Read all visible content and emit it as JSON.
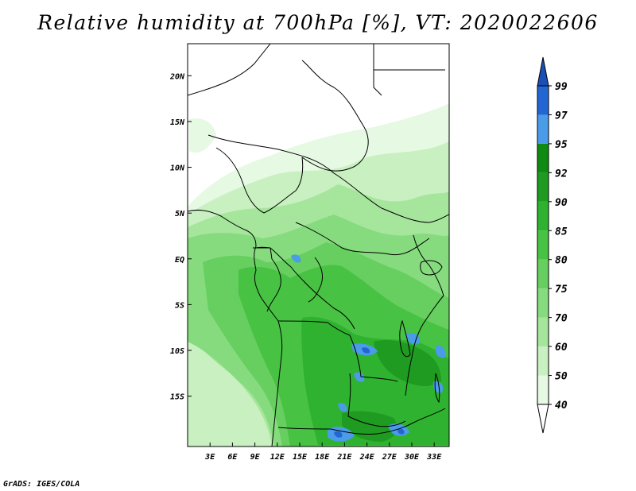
{
  "title": "Relative humidity at 700hPa [%], VT: 2020022606",
  "credit": "GrADS: IGES/COLA",
  "map": {
    "lat_range": [
      -20.5,
      23.5
    ],
    "lon_range": [
      0,
      35
    ],
    "lat_ticks": [
      {
        "value": 20,
        "label": "20N"
      },
      {
        "value": 15,
        "label": "15N"
      },
      {
        "value": 10,
        "label": "10N"
      },
      {
        "value": 5,
        "label": "5N"
      },
      {
        "value": 0,
        "label": "EQ"
      },
      {
        "value": -5,
        "label": "5S"
      },
      {
        "value": -10,
        "label": "10S"
      },
      {
        "value": -15,
        "label": "15S"
      }
    ],
    "lon_ticks": [
      {
        "value": 3,
        "label": "3E"
      },
      {
        "value": 6,
        "label": "6E"
      },
      {
        "value": 9,
        "label": "9E"
      },
      {
        "value": 12,
        "label": "12E"
      },
      {
        "value": 15,
        "label": "15E"
      },
      {
        "value": 18,
        "label": "18E"
      },
      {
        "value": 21,
        "label": "21E"
      },
      {
        "value": 24,
        "label": "24E"
      },
      {
        "value": 27,
        "label": "27E"
      },
      {
        "value": 30,
        "label": "30E"
      },
      {
        "value": 33,
        "label": "33E"
      }
    ]
  },
  "legend": {
    "levels": [
      "40",
      "50",
      "60",
      "70",
      "75",
      "80",
      "85",
      "90",
      "92",
      "95",
      "97",
      "99"
    ],
    "colors": [
      "#ffffff",
      "#e6f9e3",
      "#c8f0c0",
      "#a6e59c",
      "#86db7e",
      "#66cf5f",
      "#48c243",
      "#2fb22f",
      "#1e9b20",
      "#0f8a13",
      "#4a9be8",
      "#2266d4",
      "#1a4fb8"
    ]
  }
}
